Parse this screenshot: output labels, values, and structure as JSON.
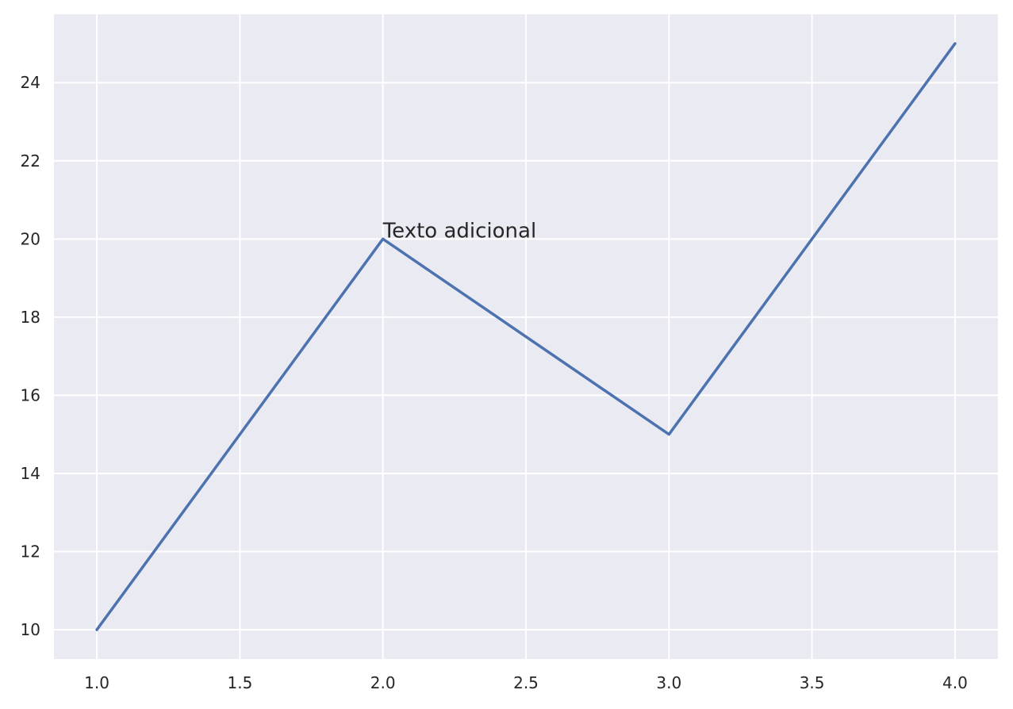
{
  "chart_data": {
    "type": "line",
    "title": "",
    "xlabel": "",
    "ylabel": "",
    "x": [
      1.0,
      2.0,
      3.0,
      4.0
    ],
    "series": [
      {
        "values": [
          10,
          20,
          15,
          25
        ],
        "color": "#4c72b0"
      }
    ],
    "xlim": [
      0.85,
      4.15
    ],
    "ylim": [
      9.25,
      25.75
    ],
    "xticks": [
      1.0,
      1.5,
      2.0,
      2.5,
      3.0,
      3.5,
      4.0
    ],
    "xtick_labels": [
      "1.0",
      "1.5",
      "2.0",
      "2.5",
      "3.0",
      "3.5",
      "4.0"
    ],
    "yticks": [
      10,
      12,
      14,
      16,
      18,
      20,
      22,
      24
    ],
    "ytick_labels": [
      "10",
      "12",
      "14",
      "16",
      "18",
      "20",
      "22",
      "24"
    ],
    "grid": true,
    "background_color": "#eaeaf2",
    "grid_color": "#ffffff",
    "annotations": [
      {
        "text": "Texto adicional",
        "x": 2.0,
        "y": 20.0
      }
    ]
  }
}
